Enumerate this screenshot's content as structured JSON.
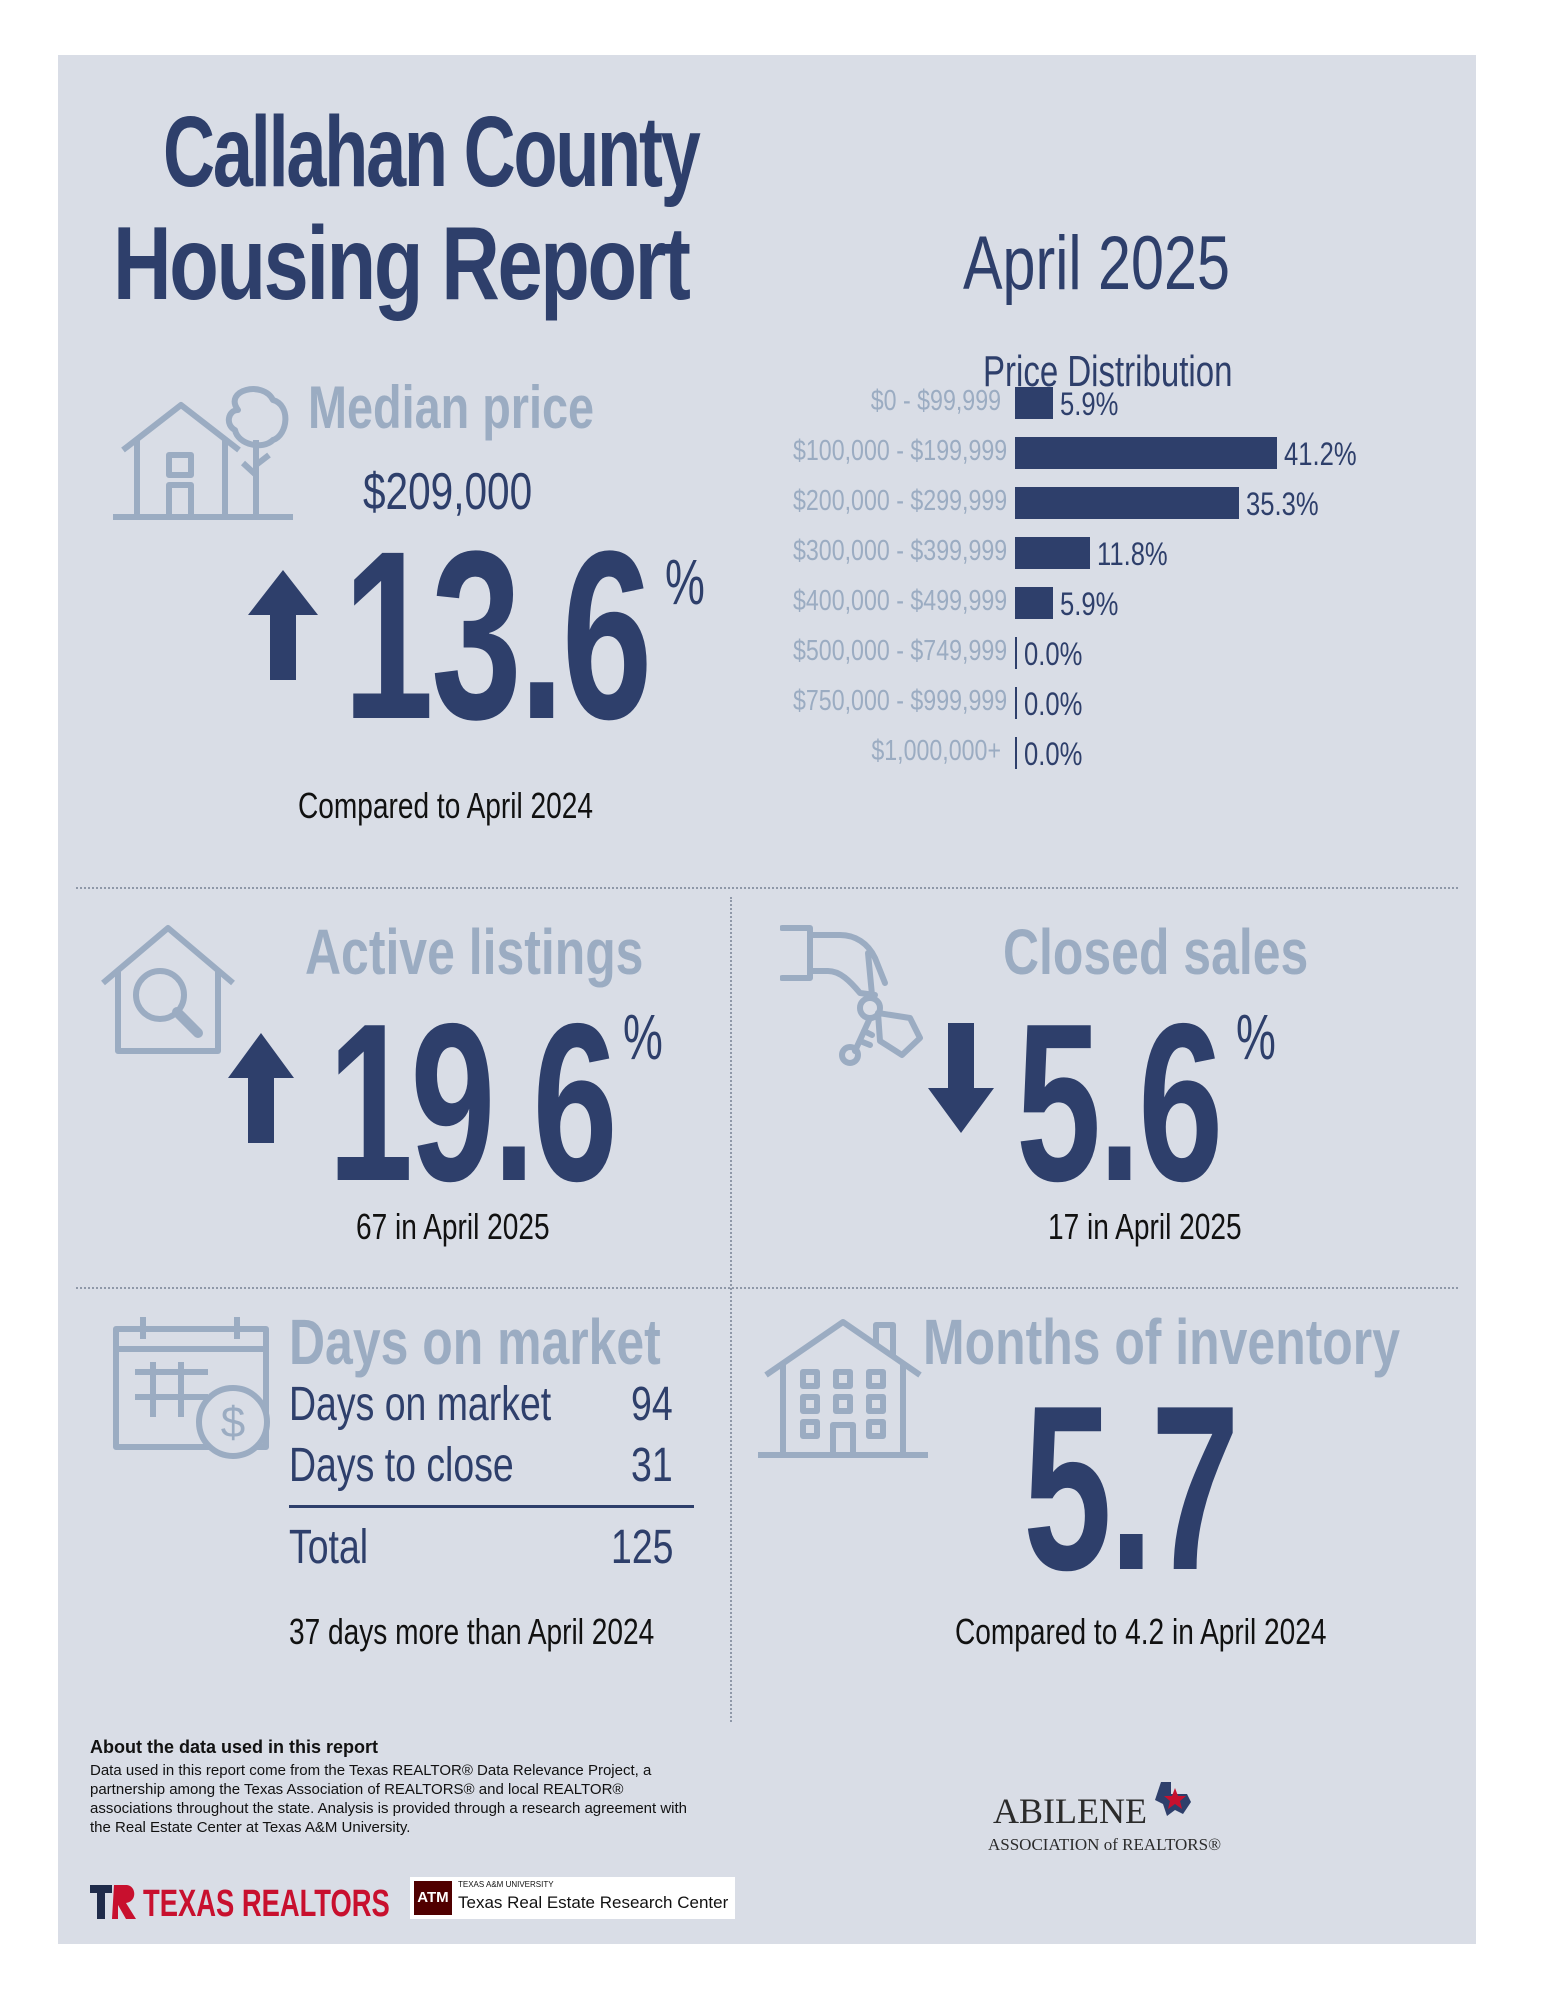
{
  "header": {
    "title_line1": "Callahan County",
    "title_line2": "Housing Report",
    "month": "April 2025"
  },
  "median": {
    "label": "Median price",
    "price": "$209,000",
    "change": "13.6",
    "pct_sign": "%",
    "direction": "up",
    "compare": "Compared to April 2024"
  },
  "price_distribution": {
    "title": "Price Distribution",
    "rows": [
      {
        "label": "$0 - $99,999",
        "value": "5.9%"
      },
      {
        "label": "$100,000 - $199,999",
        "value": "41.2%"
      },
      {
        "label": "$200,000 - $299,999",
        "value": "35.3%"
      },
      {
        "label": "$300,000 - $399,999",
        "value": "11.8%"
      },
      {
        "label": "$400,000 - $499,999",
        "value": "5.9%"
      },
      {
        "label": "$500,000 - $749,999",
        "value": "0.0%"
      },
      {
        "label": "$750,000 - $999,999",
        "value": "0.0%"
      },
      {
        "label": "$1,000,000+",
        "value": "0.0%"
      }
    ]
  },
  "chart_data": {
    "type": "bar",
    "title": "Price Distribution",
    "categories": [
      "$0 - $99,999",
      "$100,000 - $199,999",
      "$200,000 - $299,999",
      "$300,000 - $399,999",
      "$400,000 - $499,999",
      "$500,000 - $749,999",
      "$750,000 - $999,999",
      "$1,000,000+"
    ],
    "values": [
      5.9,
      41.2,
      35.3,
      11.8,
      5.9,
      0.0,
      0.0,
      0.0
    ],
    "orientation": "horizontal",
    "xlabel": "",
    "ylabel": ""
  },
  "active": {
    "label": "Active listings",
    "change": "19.6",
    "pct_sign": "%",
    "direction": "up",
    "sub": "67 in April 2025"
  },
  "closed": {
    "label": "Closed sales",
    "change": "5.6",
    "pct_sign": "%",
    "direction": "down",
    "sub": "17 in April 2025"
  },
  "dom": {
    "label": "Days on market",
    "rows": [
      {
        "label": "Days on market",
        "value": "94"
      },
      {
        "label": "Days to close",
        "value": "31"
      }
    ],
    "total_label": "Total",
    "total_value": "125",
    "compare": "37 days more than April 2024"
  },
  "inventory": {
    "label": "Months of inventory",
    "value": "5.7",
    "compare": "Compared to 4.2 in April 2024"
  },
  "about": {
    "title": "About the data used in this report",
    "body": "Data used in this report come from the Texas REALTOR® Data Relevance Project, a partnership among the Texas Association of REALTORS® and local REALTOR® associations throughout the state. Analysis is provided through a research agreement with the Real Estate Center at Texas A&M University."
  },
  "logos": {
    "texas_realtors": "TEXAS REALTORS",
    "tamu_small": "TEXAS A&M UNIVERSITY",
    "tamu_name": "Texas Real Estate Research Center",
    "abilene_line1": "ABILENE",
    "abilene_line2": "ASSOCIATION of REALTORS®"
  },
  "colors": {
    "navy": "#2e3f6b",
    "pale": "#9bacc2",
    "panel": "#d9dde6",
    "red": "#c8102e"
  }
}
